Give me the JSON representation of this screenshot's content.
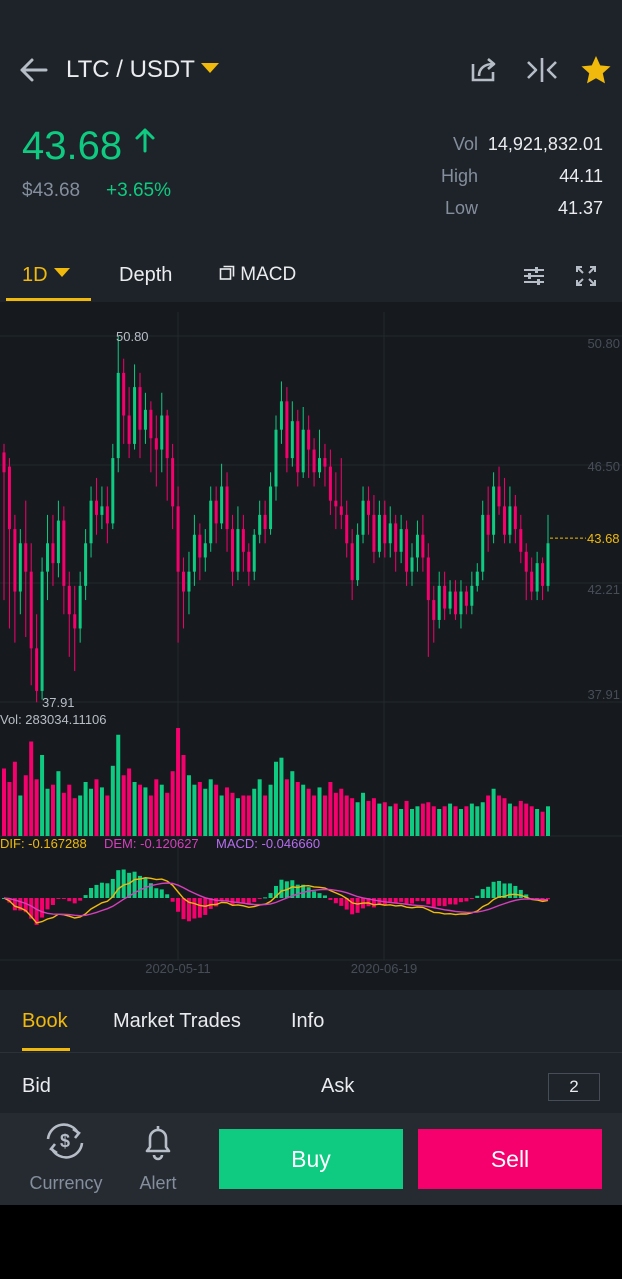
{
  "header": {
    "pair": "LTC / USDT",
    "price": "43.68",
    "fiat_price": "$43.68",
    "change": "+3.65%",
    "vol_label": "Vol",
    "vol_value": "14,921,832.01",
    "high_label": "High",
    "high_value": "44.11",
    "low_label": "Low",
    "low_value": "41.37",
    "icons": [
      "back-arrow-icon",
      "share-icon",
      "compare-icon",
      "star-icon"
    ]
  },
  "toolbar": {
    "interval": "1D",
    "depth": "Depth",
    "indicator": "MACD",
    "icons": [
      "settings-sliders-icon",
      "fullscreen-icon"
    ]
  },
  "colors": {
    "up": "#0ecb81",
    "down": "#f6006e",
    "accent": "#f0b90b",
    "background": "#1e2329"
  },
  "chart_data": {
    "type": "candlestick",
    "price_axis_ticks": [
      "50.80",
      "46.50",
      "43.68",
      "42.21",
      "37.91"
    ],
    "max_label": "50.80",
    "min_label": "37.91",
    "last_price": "43.68",
    "ylim": [
      37.91,
      50.8
    ],
    "volume_label": "Vol: 283034.11106",
    "macd": {
      "dif_label": "DIF: -0.167288",
      "dem_label": "DEM: -0.120627",
      "macd_label": "MACD: -0.046660"
    },
    "x_ticks": [
      "2020-05-11",
      "2020-06-19"
    ],
    "candles": [
      [
        46.7,
        46.0,
        47.0,
        41.5
      ],
      [
        46.2,
        44.0,
        46.5,
        40.5
      ],
      [
        44.0,
        41.8,
        44.5,
        40.0
      ],
      [
        41.8,
        43.5,
        44.0,
        41.0
      ],
      [
        43.5,
        42.5,
        45.0,
        40.2
      ],
      [
        42.5,
        39.8,
        43.5,
        38.5
      ],
      [
        39.8,
        38.3,
        41.0,
        37.9
      ],
      [
        38.3,
        42.5,
        43.0,
        38.0
      ],
      [
        42.5,
        43.5,
        44.5,
        41.5
      ],
      [
        43.5,
        42.8,
        44.5,
        42.0
      ],
      [
        42.8,
        44.3,
        45.0,
        42.3
      ],
      [
        44.3,
        42.0,
        44.8,
        41.0
      ],
      [
        42.0,
        41.0,
        42.5,
        39.5
      ],
      [
        41.0,
        40.5,
        42.0,
        39.0
      ],
      [
        40.5,
        42.0,
        42.5,
        40.0
      ],
      [
        42.0,
        43.5,
        44.0,
        41.5
      ],
      [
        43.5,
        45.0,
        45.5,
        43.0
      ],
      [
        45.0,
        44.5,
        45.8,
        43.8
      ],
      [
        44.5,
        44.8,
        45.5,
        44.0
      ],
      [
        44.8,
        44.2,
        45.5,
        43.5
      ],
      [
        44.2,
        46.5,
        47.0,
        44.0
      ],
      [
        46.5,
        49.5,
        50.8,
        46.0
      ],
      [
        49.5,
        48.0,
        50.0,
        47.0
      ],
      [
        48.0,
        47.0,
        49.0,
        46.5
      ],
      [
        47.0,
        49.0,
        49.8,
        46.8
      ],
      [
        49.0,
        47.5,
        49.5,
        46.5
      ],
      [
        47.5,
        48.2,
        48.8,
        47.0
      ],
      [
        48.2,
        47.2,
        48.5,
        46.0
      ],
      [
        47.2,
        46.8,
        48.0,
        45.5
      ],
      [
        46.8,
        48.0,
        48.8,
        46.0
      ],
      [
        48.0,
        46.5,
        48.2,
        45.0
      ],
      [
        46.5,
        44.8,
        47.0,
        44.0
      ],
      [
        44.8,
        42.5,
        45.5,
        40.0
      ],
      [
        42.5,
        41.8,
        43.0,
        40.5
      ],
      [
        41.8,
        42.5,
        43.2,
        41.0
      ],
      [
        42.5,
        43.8,
        44.5,
        42.0
      ],
      [
        43.8,
        43.0,
        44.2,
        42.2
      ],
      [
        43.0,
        43.5,
        44.0,
        42.5
      ],
      [
        43.5,
        45.0,
        45.5,
        43.2
      ],
      [
        45.0,
        44.2,
        45.5,
        43.5
      ],
      [
        44.2,
        45.5,
        46.3,
        44.0
      ],
      [
        45.5,
        44.0,
        46.0,
        43.2
      ],
      [
        44.0,
        42.5,
        44.5,
        42.0
      ],
      [
        42.5,
        44.0,
        44.8,
        42.2
      ],
      [
        44.0,
        43.2,
        44.5,
        42.5
      ],
      [
        43.2,
        42.5,
        43.5,
        42.0
      ],
      [
        42.5,
        43.8,
        44.0,
        42.2
      ],
      [
        43.8,
        44.5,
        45.0,
        43.5
      ],
      [
        44.5,
        44.0,
        45.0,
        43.5
      ],
      [
        44.0,
        45.5,
        46.0,
        43.8
      ],
      [
        45.5,
        47.5,
        48.0,
        45.0
      ],
      [
        47.5,
        48.5,
        49.2,
        47.0
      ],
      [
        48.5,
        46.5,
        49.0,
        46.0
      ],
      [
        46.5,
        47.8,
        48.5,
        46.2
      ],
      [
        47.8,
        46.0,
        48.2,
        45.5
      ],
      [
        46.0,
        47.5,
        48.3,
        45.8
      ],
      [
        47.5,
        46.8,
        48.0,
        45.8
      ],
      [
        46.8,
        46.0,
        47.2,
        45.5
      ],
      [
        46.0,
        46.5,
        47.5,
        45.8
      ],
      [
        46.5,
        46.2,
        47.0,
        45.5
      ],
      [
        46.2,
        45.0,
        46.8,
        44.5
      ],
      [
        45.0,
        44.8,
        46.0,
        44.0
      ],
      [
        44.8,
        44.5,
        46.5,
        44.0
      ],
      [
        44.5,
        43.5,
        45.0,
        43.0
      ],
      [
        43.5,
        42.2,
        44.0,
        41.5
      ],
      [
        42.2,
        43.8,
        44.2,
        42.0
      ],
      [
        43.8,
        45.0,
        45.5,
        43.5
      ],
      [
        45.0,
        44.5,
        45.5,
        43.8
      ],
      [
        44.5,
        43.2,
        45.2,
        42.8
      ],
      [
        43.2,
        44.5,
        45.0,
        43.0
      ],
      [
        44.5,
        43.5,
        45.0,
        43.0
      ],
      [
        43.5,
        44.2,
        44.8,
        43.0
      ],
      [
        44.2,
        43.2,
        44.5,
        42.5
      ],
      [
        43.2,
        44.0,
        44.5,
        42.8
      ],
      [
        44.0,
        42.5,
        44.3,
        42.0
      ],
      [
        42.5,
        43.0,
        43.5,
        42.0
      ],
      [
        43.0,
        43.8,
        44.3,
        42.5
      ],
      [
        43.8,
        43.0,
        44.5,
        42.5
      ],
      [
        43.0,
        41.5,
        43.5,
        39.5
      ],
      [
        41.5,
        40.8,
        42.0,
        40.0
      ],
      [
        40.8,
        42.0,
        42.5,
        40.5
      ],
      [
        42.0,
        41.2,
        42.5,
        40.8
      ],
      [
        41.2,
        41.8,
        42.2,
        41.0
      ],
      [
        41.8,
        41.0,
        42.2,
        40.8
      ],
      [
        41.0,
        41.8,
        42.2,
        40.5
      ],
      [
        41.8,
        41.3,
        42.0,
        41.0
      ],
      [
        41.3,
        42.0,
        42.5,
        41.0
      ],
      [
        42.0,
        42.5,
        42.8,
        41.8
      ],
      [
        42.5,
        44.5,
        45.0,
        42.2
      ],
      [
        44.5,
        43.8,
        45.5,
        43.2
      ],
      [
        43.8,
        45.5,
        46.0,
        43.5
      ],
      [
        45.5,
        44.8,
        46.2,
        44.5
      ],
      [
        44.8,
        43.8,
        45.8,
        43.5
      ],
      [
        43.8,
        44.8,
        45.5,
        43.5
      ],
      [
        44.8,
        44.0,
        45.2,
        43.5
      ],
      [
        44.0,
        43.2,
        44.5,
        42.8
      ],
      [
        43.2,
        42.5,
        43.5,
        41.5
      ],
      [
        42.5,
        41.8,
        43.0,
        41.5
      ],
      [
        41.8,
        42.8,
        43.2,
        41.5
      ],
      [
        42.8,
        42.0,
        43.0,
        41.5
      ],
      [
        42.0,
        43.5,
        44.5,
        41.8
      ]
    ],
    "volumes": [
      50,
      40,
      55,
      30,
      45,
      70,
      42,
      60,
      35,
      38,
      48,
      32,
      38,
      28,
      30,
      40,
      35,
      42,
      36,
      30,
      52,
      75,
      45,
      50,
      40,
      38,
      36,
      30,
      42,
      38,
      32,
      48,
      80,
      60,
      45,
      38,
      40,
      35,
      42,
      38,
      30,
      36,
      32,
      28,
      30,
      30,
      35,
      42,
      30,
      38,
      55,
      58,
      42,
      48,
      40,
      38,
      35,
      30,
      36,
      30,
      40,
      32,
      35,
      30,
      28,
      25,
      32,
      26,
      28,
      24,
      25,
      22,
      24,
      20,
      26,
      20,
      22,
      24,
      25,
      22,
      20,
      22,
      24,
      22,
      20,
      22,
      24,
      22,
      25,
      30,
      35,
      30,
      28,
      24,
      22,
      26,
      24,
      22,
      20,
      18,
      22
    ]
  },
  "book": {
    "tabs": [
      "Book",
      "Market Trades",
      "Info"
    ],
    "bid_label": "Bid",
    "ask_label": "Ask",
    "depth_value": "2"
  },
  "bottom": {
    "currency_label": "Currency",
    "alert_label": "Alert",
    "buy_label": "Buy",
    "sell_label": "Sell",
    "icons": [
      "currency-exchange-icon",
      "bell-icon"
    ]
  }
}
